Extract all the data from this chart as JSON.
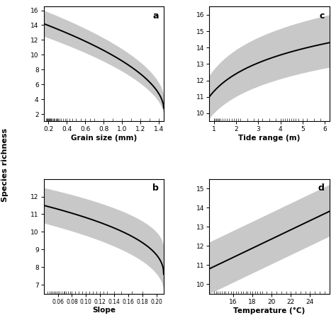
{
  "panels": [
    {
      "label": "a",
      "xlabel": "Grain size (mm)",
      "xlim": [
        0.15,
        1.45
      ],
      "ylim": [
        1.0,
        16.5
      ],
      "yticks": [
        2,
        4,
        6,
        8,
        10,
        12,
        14,
        16
      ],
      "xticks": [
        0.2,
        0.4,
        0.6,
        0.8,
        1.0,
        1.2,
        1.4
      ],
      "curve_type": "power_decay",
      "y_start": 14.2,
      "y_end": 2.8,
      "ci_upper_start": 16.0,
      "ci_upper_end": 4.2,
      "ci_lower_start": 12.5,
      "ci_lower_end": 1.8,
      "power": 0.55,
      "rug_x": [
        0.175,
        0.18,
        0.185,
        0.19,
        0.195,
        0.2,
        0.205,
        0.21,
        0.215,
        0.22,
        0.225,
        0.23,
        0.235,
        0.24,
        0.25,
        0.26,
        0.27,
        0.28,
        0.29,
        0.3,
        0.31,
        0.32,
        0.34,
        0.36,
        0.38,
        0.4,
        0.43,
        0.46,
        0.5,
        0.55,
        0.6,
        0.65,
        0.7,
        0.8,
        0.9,
        1.0,
        1.1,
        1.2,
        1.3,
        1.4
      ],
      "show_ylabel": true
    },
    {
      "label": "c",
      "xlabel": "Tide range (m)",
      "xlim": [
        0.8,
        6.2
      ],
      "ylim": [
        9.5,
        16.5
      ],
      "yticks": [
        10,
        11,
        12,
        13,
        14,
        15,
        16
      ],
      "xticks": [
        1,
        2,
        3,
        4,
        5,
        6
      ],
      "curve_type": "log_growth",
      "y_start": 11.0,
      "y_end": 14.3,
      "ci_upper_start": 12.3,
      "ci_upper_end": 16.0,
      "ci_lower_start": 9.7,
      "ci_lower_end": 12.8,
      "rug_x": [
        1.0,
        1.05,
        1.1,
        1.15,
        1.2,
        1.25,
        1.3,
        1.4,
        1.5,
        1.6,
        1.7,
        1.8,
        1.9,
        2.0,
        2.1,
        2.2,
        2.5,
        2.8,
        3.0,
        3.2,
        3.5,
        3.8,
        4.0,
        4.1,
        4.2,
        4.3,
        4.4,
        4.5,
        4.6,
        4.7,
        4.8,
        5.0,
        5.2,
        5.5,
        5.8
      ],
      "show_ylabel": false
    },
    {
      "label": "b",
      "xlabel": "Slope",
      "xlim": [
        0.04,
        0.21
      ],
      "ylim": [
        6.5,
        13.0
      ],
      "yticks": [
        7,
        8,
        9,
        10,
        11,
        12
      ],
      "xticks": [
        0.06,
        0.08,
        0.1,
        0.12,
        0.14,
        0.16,
        0.18,
        0.2
      ],
      "curve_type": "power_decay",
      "y_start": 11.5,
      "y_end": 7.6,
      "ci_upper_start": 12.5,
      "ci_upper_end": 9.0,
      "ci_lower_start": 10.5,
      "ci_lower_end": 6.5,
      "power": 0.45,
      "rug_x": [
        0.045,
        0.048,
        0.05,
        0.052,
        0.054,
        0.056,
        0.058,
        0.06,
        0.062,
        0.065,
        0.068,
        0.07,
        0.072,
        0.075,
        0.078,
        0.08,
        0.085,
        0.09,
        0.095,
        0.1,
        0.105,
        0.11,
        0.115,
        0.12,
        0.125,
        0.13,
        0.14,
        0.15,
        0.165,
        0.18
      ],
      "show_ylabel": false
    },
    {
      "label": "d",
      "xlabel": "Temperature (°C)",
      "xlim": [
        13.5,
        26.0
      ],
      "ylim": [
        9.5,
        15.5
      ],
      "yticks": [
        10,
        11,
        12,
        13,
        14,
        15
      ],
      "xticks": [
        16,
        18,
        20,
        22,
        24
      ],
      "curve_type": "linear_growth",
      "y_start": 10.8,
      "y_end": 13.8,
      "ci_upper_start": 12.2,
      "ci_upper_end": 15.2,
      "ci_lower_start": 9.5,
      "ci_lower_end": 12.5,
      "rug_x": [
        14.0,
        14.2,
        14.4,
        14.6,
        14.8,
        15.0,
        15.2,
        15.5,
        15.8,
        16.0,
        16.3,
        16.5,
        16.8,
        17.0,
        17.3,
        17.5,
        17.8,
        18.0,
        18.3,
        18.5,
        18.8,
        19.0,
        19.5,
        20.0,
        20.5,
        21.0,
        21.5,
        22.0,
        22.5,
        23.0,
        23.5,
        24.0,
        24.5,
        25.0,
        25.5
      ],
      "show_ylabel": false
    }
  ],
  "shared_ylabel": "Species richness",
  "bg_color": "#ffffff",
  "ci_color": "#c8c8c8",
  "line_color": "#000000",
  "rug_color": "#444444"
}
